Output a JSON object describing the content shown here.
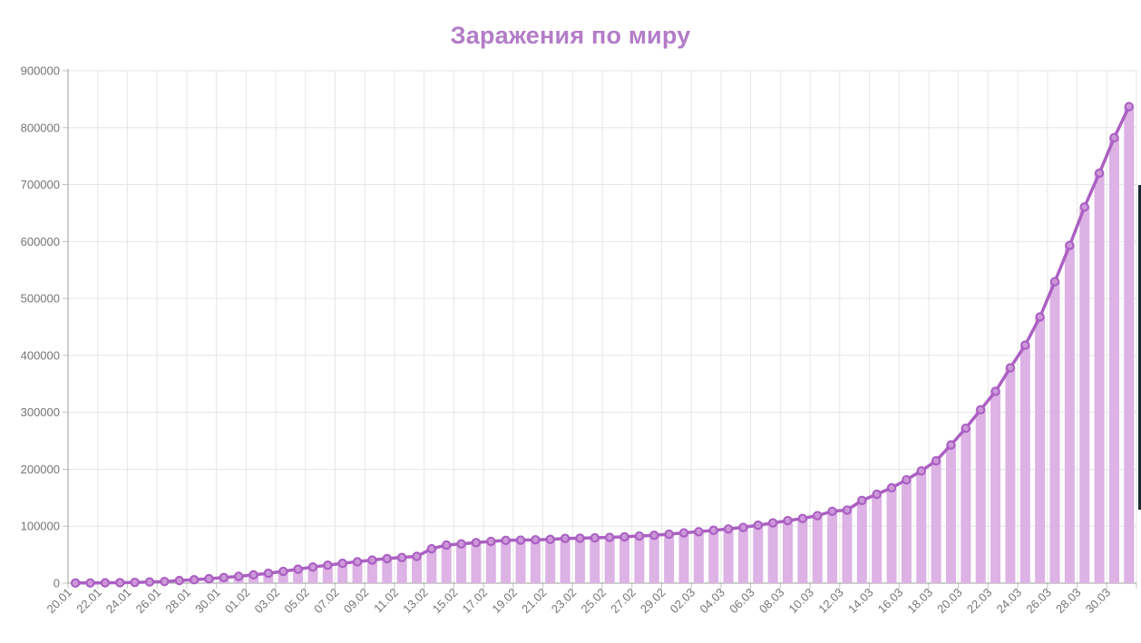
{
  "chart_data": {
    "type": "line",
    "subtype": "line-with-markers-over-daily-bars",
    "title": "Заражения по миру",
    "x_start": "20.01",
    "x_end": "31.03",
    "points_per_tick": 2,
    "x_tick_labels": [
      "20.01",
      "22.01",
      "24.01",
      "26.01",
      "28.01",
      "30.01",
      "01.02",
      "03.02",
      "05.02",
      "07.02",
      "09.02",
      "11.02",
      "13.02",
      "15.02",
      "17.02",
      "19.02",
      "21.02",
      "23.02",
      "25.02",
      "27.02",
      "29.02",
      "02.03",
      "04.03",
      "06.03",
      "08.03",
      "10.03",
      "12.03",
      "14.03",
      "16.03",
      "18.03",
      "20.03",
      "22.03",
      "24.03",
      "26.03",
      "28.03",
      "30.03"
    ],
    "values": [
      282,
      314,
      581,
      846,
      1320,
      2014,
      2798,
      4593,
      6065,
      7818,
      9826,
      11953,
      14557,
      17391,
      20630,
      24554,
      28276,
      31481,
      34886,
      37558,
      40554,
      43103,
      45171,
      46997,
      60335,
      66887,
      69030,
      71226,
      73260,
      75136,
      75641,
      76199,
      76843,
      78599,
      78985,
      79570,
      80415,
      81397,
      82756,
      84124,
      86013,
      88371,
      90308,
      92843,
      95124,
      97886,
      101801,
      105847,
      109821,
      113590,
      118620,
      126214,
      128343,
      145193,
      156097,
      167449,
      181531,
      197146,
      214910,
      242708,
      272166,
      304524,
      336953,
      378231,
      418041,
      467653,
      529591,
      593291,
      660693,
      720117,
      782365,
      837000
    ],
    "ylim": [
      0,
      900000
    ],
    "y_tick_step": 100000,
    "y_tick_labels": [
      "0",
      "100000",
      "200000",
      "300000",
      "400000",
      "500000",
      "600000",
      "700000",
      "800000",
      "900000"
    ],
    "grid": true,
    "legend": false
  },
  "colors": {
    "title": "#b37cc8",
    "line": "#ab60c2",
    "marker_fill": "#cf9cdb",
    "bar_fill": "#ddb2e5",
    "grid": "#e6e6e6",
    "axis": "#9e9e9e",
    "tick": "#c4c4c4",
    "tick_label": "#757575",
    "scrollbar": "#1c2731",
    "background": "#ffffff"
  }
}
